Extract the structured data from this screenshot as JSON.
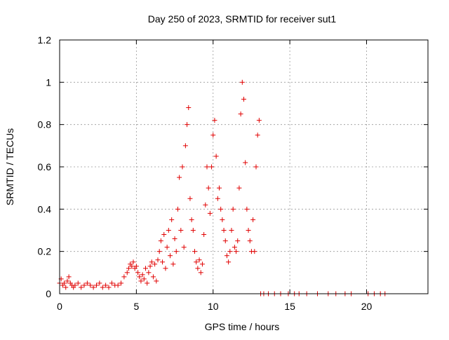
{
  "chart_data": {
    "type": "scatter",
    "title": "Day 250 of 2023, SRMTID for receiver sut1",
    "xlabel": "GPS time / hours",
    "ylabel": "SRMTID / TECUs",
    "xlim": [
      0,
      24
    ],
    "ylim": [
      0,
      1.2
    ],
    "xticks": [
      0,
      5,
      10,
      15,
      20
    ],
    "xtick_labels": [
      "0",
      "5",
      "10",
      "15",
      "20"
    ],
    "yticks": [
      0,
      0.2,
      0.4,
      0.6,
      0.8,
      1,
      1.2
    ],
    "ytick_labels": [
      "0",
      "0.2",
      "0.4",
      "0.6",
      "0.8",
      "1",
      "1.2"
    ],
    "grid": true,
    "marker": "+",
    "series": [
      {
        "name": "sut1",
        "color": "#e00000",
        "x": [
          0.0,
          0.1,
          0.2,
          0.3,
          0.4,
          0.5,
          0.6,
          0.7,
          0.8,
          0.9,
          1.0,
          1.2,
          1.4,
          1.6,
          1.8,
          2.0,
          2.2,
          2.4,
          2.6,
          2.8,
          3.0,
          3.2,
          3.4,
          3.6,
          3.8,
          4.0,
          4.2,
          4.4,
          4.5,
          4.6,
          4.7,
          4.8,
          4.9,
          5.0,
          5.1,
          5.2,
          5.3,
          5.4,
          5.5,
          5.6,
          5.7,
          5.8,
          5.9,
          6.0,
          6.1,
          6.2,
          6.3,
          6.4,
          6.5,
          6.6,
          6.7,
          6.8,
          6.9,
          7.0,
          7.1,
          7.2,
          7.3,
          7.4,
          7.5,
          7.6,
          7.7,
          7.8,
          7.9,
          8.0,
          8.1,
          8.2,
          8.3,
          8.4,
          8.5,
          8.6,
          8.7,
          8.8,
          8.9,
          9.0,
          9.1,
          9.2,
          9.3,
          9.4,
          9.5,
          9.6,
          9.7,
          9.8,
          9.9,
          10.0,
          10.1,
          10.2,
          10.3,
          10.4,
          10.5,
          10.6,
          10.7,
          10.8,
          10.9,
          11.0,
          11.1,
          11.2,
          11.3,
          11.4,
          11.5,
          11.6,
          11.7,
          11.8,
          11.9,
          12.0,
          12.1,
          12.2,
          12.3,
          12.4,
          12.5,
          12.6,
          12.7,
          12.8,
          12.9,
          13.0,
          13.1,
          13.3,
          13.6,
          14.0,
          14.4,
          14.9,
          15.3,
          15.6,
          16.1,
          16.8,
          17.5,
          18.0,
          18.6,
          19.0,
          20.1,
          20.5,
          20.9,
          21.2
        ],
        "y": [
          0.05,
          0.07,
          0.04,
          0.05,
          0.03,
          0.06,
          0.08,
          0.05,
          0.04,
          0.03,
          0.04,
          0.05,
          0.03,
          0.04,
          0.05,
          0.04,
          0.03,
          0.04,
          0.05,
          0.03,
          0.04,
          0.03,
          0.05,
          0.04,
          0.04,
          0.05,
          0.08,
          0.1,
          0.12,
          0.14,
          0.13,
          0.15,
          0.12,
          0.13,
          0.1,
          0.08,
          0.06,
          0.09,
          0.07,
          0.12,
          0.05,
          0.1,
          0.13,
          0.15,
          0.08,
          0.14,
          0.06,
          0.16,
          0.2,
          0.25,
          0.15,
          0.28,
          0.12,
          0.22,
          0.3,
          0.18,
          0.35,
          0.14,
          0.26,
          0.2,
          0.4,
          0.55,
          0.3,
          0.6,
          0.22,
          0.7,
          0.8,
          0.88,
          0.45,
          0.35,
          0.3,
          0.2,
          0.15,
          0.12,
          0.16,
          0.1,
          0.14,
          0.28,
          0.42,
          0.6,
          0.5,
          0.38,
          0.6,
          0.75,
          0.82,
          0.65,
          0.45,
          0.5,
          0.4,
          0.35,
          0.3,
          0.25,
          0.18,
          0.15,
          0.2,
          0.3,
          0.4,
          0.22,
          0.2,
          0.25,
          0.5,
          0.85,
          1.0,
          0.92,
          0.62,
          0.4,
          0.3,
          0.25,
          0.2,
          0.35,
          0.2,
          0.6,
          0.75,
          0.82,
          0.0,
          0.0,
          0.0,
          0.0,
          0.0,
          0.0,
          0.0,
          0.0,
          0.0,
          0.0,
          0.0,
          0.0,
          0.0,
          0.0,
          0.0,
          0.0,
          0.0,
          0.0
        ]
      }
    ]
  }
}
